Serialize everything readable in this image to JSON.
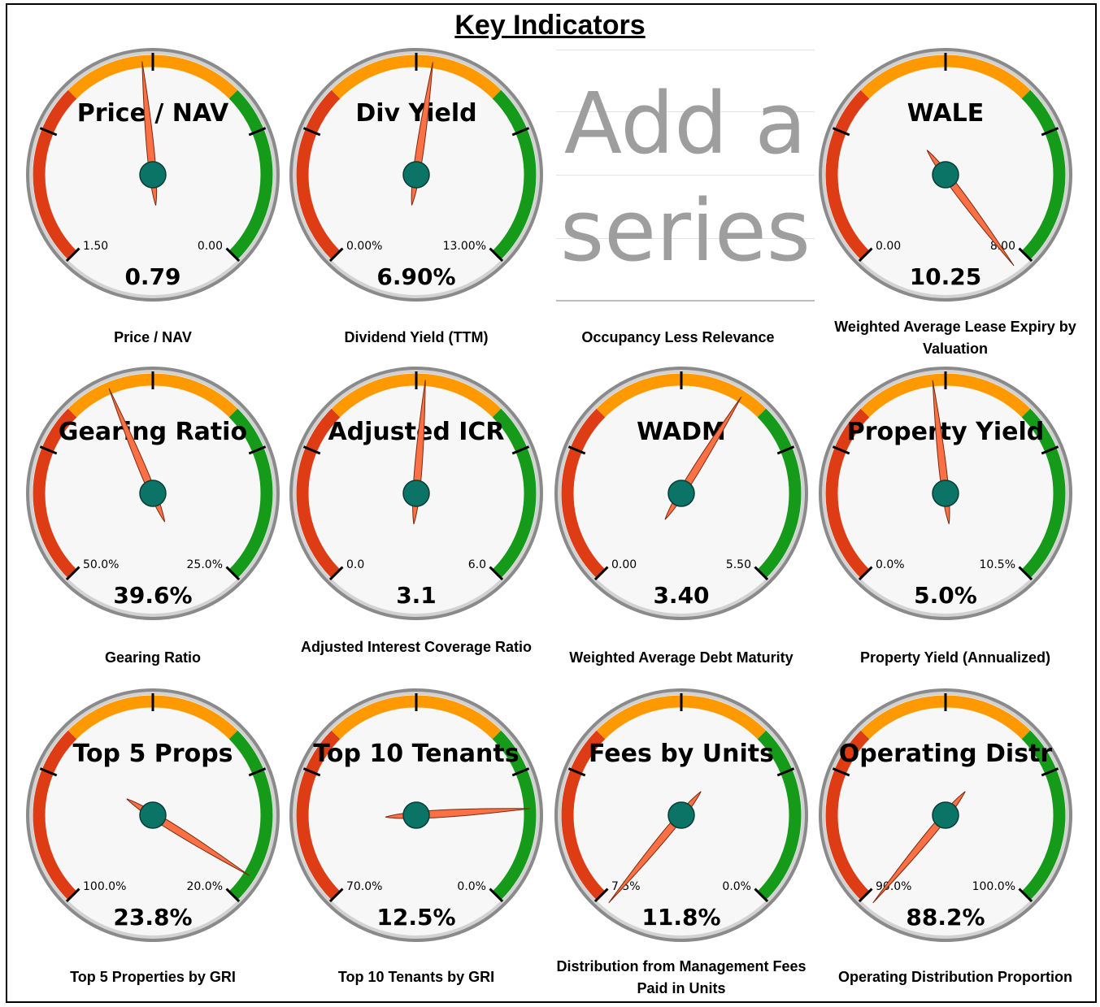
{
  "title": "Key Indicators",
  "colors": {
    "red": "#dd3c14",
    "orange": "#ff9900",
    "green": "#159a19",
    "needle": "#fb7045",
    "hub": "#0b7466",
    "face": "#f7f7f7"
  },
  "placeholder": {
    "line1": "Add a",
    "line2": "series",
    "caption": "Occupancy Less Relevance"
  },
  "chart_data": [
    {
      "type": "gauge",
      "title": "Price / NAV",
      "caption": "Price / NAV",
      "min_label": "1.50",
      "max_label": "0.00",
      "value": 0.79,
      "display": "0.79",
      "needle_pct": 0.48
    },
    {
      "type": "gauge",
      "title": "Div Yield",
      "caption": "Dividend Yield (TTM)",
      "min_label": "0.00%",
      "max_label": "13.00%",
      "value": 6.9,
      "display": "6.90%",
      "needle_pct": 0.531
    },
    {
      "type": "gauge",
      "title": "WALE",
      "caption": "Weighted Average Lease Expiry by Valuation",
      "min_label": "0.00",
      "max_label": "8.00",
      "value": 10.25,
      "display": "10.25",
      "needle_pct": 1.03
    },
    {
      "type": "gauge",
      "title": "Gearing Ratio",
      "caption": "Gearing Ratio",
      "min_label": "50.0%",
      "max_label": "25.0%",
      "value": 39.6,
      "display": "39.6%",
      "needle_pct": 0.416
    },
    {
      "type": "gauge",
      "title": "Adjusted ICR",
      "caption": "Adjusted Interest Coverage Ratio",
      "min_label": "0.0",
      "max_label": "6.0",
      "value": 3.1,
      "display": "3.1",
      "needle_pct": 0.517
    },
    {
      "type": "gauge",
      "title": "WADM",
      "caption": "Weighted Average Debt Maturity",
      "min_label": "0.00",
      "max_label": "5.50",
      "value": 3.4,
      "display": "3.40",
      "needle_pct": 0.618
    },
    {
      "type": "gauge",
      "title": "Property Yield",
      "caption": "Property Yield (Annualized)",
      "min_label": "0.0%",
      "max_label": "10.5%",
      "value": 5.0,
      "display": "5.0%",
      "needle_pct": 0.476
    },
    {
      "type": "gauge",
      "title": "Top 5 Props",
      "caption": "Top 5 Properties by GRI",
      "min_label": "100.0%",
      "max_label": "20.0%",
      "value": 23.8,
      "display": "23.8%",
      "needle_pct": 0.952
    },
    {
      "type": "gauge",
      "title": "Top 10 Tenants",
      "caption": "Top 10 Tenants by GRI",
      "min_label": "70.0%",
      "max_label": "0.0%",
      "value": 12.5,
      "display": "12.5%",
      "needle_pct": 0.821
    },
    {
      "type": "gauge",
      "title": "Fees by Units",
      "caption": "Distribution from Management Fees Paid in Units",
      "min_label": "7.5%",
      "max_label": "0.0%",
      "value": 11.8,
      "display": "11.8%",
      "needle_pct": -0.02
    },
    {
      "type": "gauge",
      "title": "Operating Distr",
      "caption": "Operating Distribution Proportion",
      "min_label": "90.0%",
      "max_label": "100.0%",
      "value": 88.2,
      "display": "88.2%",
      "needle_pct": -0.02
    }
  ]
}
